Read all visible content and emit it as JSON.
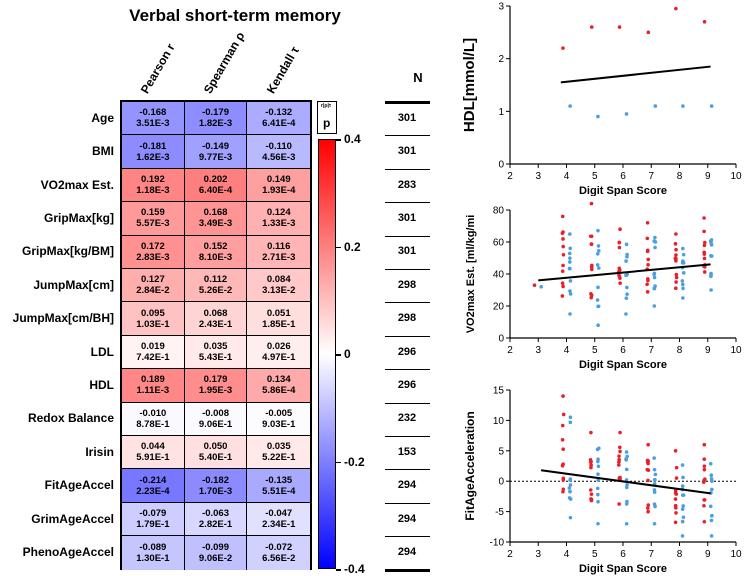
{
  "heatmap": {
    "title": "Verbal short-term memory",
    "columns": [
      "Pearson r",
      "Spearman ρ",
      "Kendall τ"
    ],
    "rows": [
      {
        "label": "Age",
        "cells": [
          [
            "-0.168",
            "3.51E-3"
          ],
          [
            "-0.179",
            "1.82E-3"
          ],
          [
            "-0.132",
            "6.41E-4"
          ]
        ],
        "r": [
          -0.168,
          -0.179,
          -0.132
        ],
        "n": "301"
      },
      {
        "label": "BMI",
        "cells": [
          [
            "-0.181",
            "1.62E-3"
          ],
          [
            "-0.149",
            "9.77E-3"
          ],
          [
            "-0.110",
            "4.56E-3"
          ]
        ],
        "r": [
          -0.181,
          -0.149,
          -0.11
        ],
        "n": "301"
      },
      {
        "label": "VO2max Est.",
        "cells": [
          [
            "0.192",
            "1.18E-3"
          ],
          [
            "0.202",
            "6.40E-4"
          ],
          [
            "0.149",
            "1.93E-4"
          ]
        ],
        "r": [
          0.192,
          0.202,
          0.149
        ],
        "n": "283"
      },
      {
        "label": "GripMax[kg]",
        "cells": [
          [
            "0.159",
            "5.57E-3"
          ],
          [
            "0.168",
            "3.49E-3"
          ],
          [
            "0.124",
            "1.33E-3"
          ]
        ],
        "r": [
          0.159,
          0.168,
          0.124
        ],
        "n": "301"
      },
      {
        "label": "GripMax[kg/BM]",
        "cells": [
          [
            "0.172",
            "2.83E-3"
          ],
          [
            "0.152",
            "8.10E-3"
          ],
          [
            "0.116",
            "2.71E-3"
          ]
        ],
        "r": [
          0.172,
          0.152,
          0.116
        ],
        "n": "301"
      },
      {
        "label": "JumpMax[cm]",
        "cells": [
          [
            "0.127",
            "2.84E-2"
          ],
          [
            "0.112",
            "5.26E-2"
          ],
          [
            "0.084",
            "3.13E-2"
          ]
        ],
        "r": [
          0.127,
          0.112,
          0.084
        ],
        "n": "298"
      },
      {
        "label": "JumpMax[cm/BH]",
        "cells": [
          [
            "0.095",
            "1.03E-1"
          ],
          [
            "0.068",
            "2.43E-1"
          ],
          [
            "0.051",
            "1.85E-1"
          ]
        ],
        "r": [
          0.095,
          0.068,
          0.051
        ],
        "n": "298"
      },
      {
        "label": "LDL",
        "cells": [
          [
            "0.019",
            "7.42E-1"
          ],
          [
            "0.035",
            "5.43E-1"
          ],
          [
            "0.026",
            "4.97E-1"
          ]
        ],
        "r": [
          0.019,
          0.035,
          0.026
        ],
        "n": "296"
      },
      {
        "label": "HDL",
        "cells": [
          [
            "0.189",
            "1.11E-3"
          ],
          [
            "0.179",
            "1.95E-3"
          ],
          [
            "0.134",
            "5.86E-4"
          ]
        ],
        "r": [
          0.189,
          0.179,
          0.134
        ],
        "n": "296"
      },
      {
        "label": "Redox Balance",
        "cells": [
          [
            "-0.010",
            "8.78E-1"
          ],
          [
            "-0.008",
            "9.06E-1"
          ],
          [
            "-0.005",
            "9.03E-1"
          ]
        ],
        "r": [
          -0.01,
          -0.008,
          -0.005
        ],
        "n": "232"
      },
      {
        "label": "Irisin",
        "cells": [
          [
            "0.044",
            "5.91E-1"
          ],
          [
            "0.050",
            "5.40E-1"
          ],
          [
            "0.035",
            "5.22E-1"
          ]
        ],
        "r": [
          0.044,
          0.05,
          0.035
        ],
        "n": "153"
      },
      {
        "label": "FitAgeAccel",
        "cells": [
          [
            "-0.214",
            "2.23E-4"
          ],
          [
            "-0.182",
            "1.70E-3"
          ],
          [
            "-0.135",
            "5.51E-4"
          ]
        ],
        "r": [
          -0.214,
          -0.182,
          -0.135
        ],
        "n": "294"
      },
      {
        "label": "GrimAgeAccel",
        "cells": [
          [
            "-0.079",
            "1.79E-1"
          ],
          [
            "-0.063",
            "2.82E-1"
          ],
          [
            "-0.047",
            "2.34E-1"
          ]
        ],
        "r": [
          -0.079,
          -0.063,
          -0.047
        ],
        "n": "294"
      },
      {
        "label": "PhenoAgeAccel",
        "cells": [
          [
            "-0.089",
            "1.30E-1"
          ],
          [
            "-0.099",
            "9.06E-2"
          ],
          [
            "-0.072",
            "6.56E-2"
          ]
        ],
        "r": [
          -0.089,
          -0.099,
          -0.072
        ],
        "n": "294"
      }
    ],
    "colorbar": {
      "ticks": [
        "0.4",
        "0.2",
        "0",
        "-0.2",
        "-0.4"
      ],
      "min": -0.4,
      "max": 0.4,
      "pos_color": "#ff0000",
      "neg_color": "#0000ff"
    },
    "legend": {
      "top": "r|ρ|τ",
      "bottom": "p"
    },
    "n_header": "N"
  },
  "chart_data": [
    {
      "type": "scatter",
      "title": "",
      "xlabel": "Digit Span Score",
      "ylabel": "HDL[mmol/L]",
      "xlim": [
        2,
        10
      ],
      "ylim": [
        0,
        3
      ],
      "xticks": [
        "2",
        "3",
        "4",
        "5",
        "6",
        "7",
        "8",
        "9",
        "10"
      ],
      "yticks": [
        "0",
        "1",
        "2",
        "3"
      ],
      "trend": {
        "x": [
          3.8,
          9.1
        ],
        "y": [
          1.55,
          1.85
        ]
      },
      "red_color": "#e8202a",
      "blue_color": "#4a9fe0",
      "clusters": [
        {
          "x": 4,
          "min": 1.1,
          "max": 2.2
        },
        {
          "x": 5,
          "min": 0.9,
          "max": 2.6
        },
        {
          "x": 6,
          "min": 0.95,
          "max": 2.6
        },
        {
          "x": 7,
          "min": 1.1,
          "max": 2.5
        },
        {
          "x": 8,
          "min": 1.1,
          "max": 2.95
        },
        {
          "x": 9,
          "min": 1.1,
          "max": 2.7
        }
      ]
    },
    {
      "type": "scatter",
      "title": "",
      "xlabel": "Digit Span Score",
      "ylabel": "VO2max Est. [ml/kg/mi",
      "xlim": [
        2,
        10
      ],
      "ylim": [
        0,
        80
      ],
      "xticks": [
        "2",
        "3",
        "4",
        "5",
        "6",
        "7",
        "8",
        "9",
        "10"
      ],
      "yticks": [
        "0",
        "20",
        "40",
        "60",
        "80"
      ],
      "trend": {
        "x": [
          3,
          9.1
        ],
        "y": [
          36,
          46
        ]
      },
      "red_color": "#e8202a",
      "blue_color": "#4a9fe0",
      "clusters": [
        {
          "x": 3,
          "min": 32,
          "max": 33
        },
        {
          "x": 4,
          "min": 15,
          "max": 76
        },
        {
          "x": 5,
          "min": 8,
          "max": 84
        },
        {
          "x": 6,
          "min": 15,
          "max": 68
        },
        {
          "x": 7,
          "min": 20,
          "max": 72
        },
        {
          "x": 8,
          "min": 25,
          "max": 65
        },
        {
          "x": 9,
          "min": 30,
          "max": 75
        }
      ]
    },
    {
      "type": "scatter",
      "title": "",
      "xlabel": "Digit Span Score",
      "ylabel": "FitAgeAcceleration",
      "xlim": [
        2,
        10
      ],
      "ylim": [
        -10,
        15
      ],
      "xticks": [
        "2",
        "3",
        "4",
        "5",
        "6",
        "7",
        "8",
        "9",
        "10"
      ],
      "yticks": [
        "-10",
        "-5",
        "0",
        "5",
        "10",
        "15"
      ],
      "trend": {
        "x": [
          3.1,
          9.1
        ],
        "y": [
          1.8,
          -2.0
        ]
      },
      "red_color": "#e8202a",
      "blue_color": "#4a9fe0",
      "clusters": [
        {
          "x": 4,
          "min": -6,
          "max": 14
        },
        {
          "x": 5,
          "min": -7,
          "max": 8
        },
        {
          "x": 6,
          "min": -7,
          "max": 8
        },
        {
          "x": 7,
          "min": -7,
          "max": 6
        },
        {
          "x": 8,
          "min": -9,
          "max": 5
        },
        {
          "x": 9,
          "min": -9,
          "max": 6
        }
      ]
    }
  ]
}
